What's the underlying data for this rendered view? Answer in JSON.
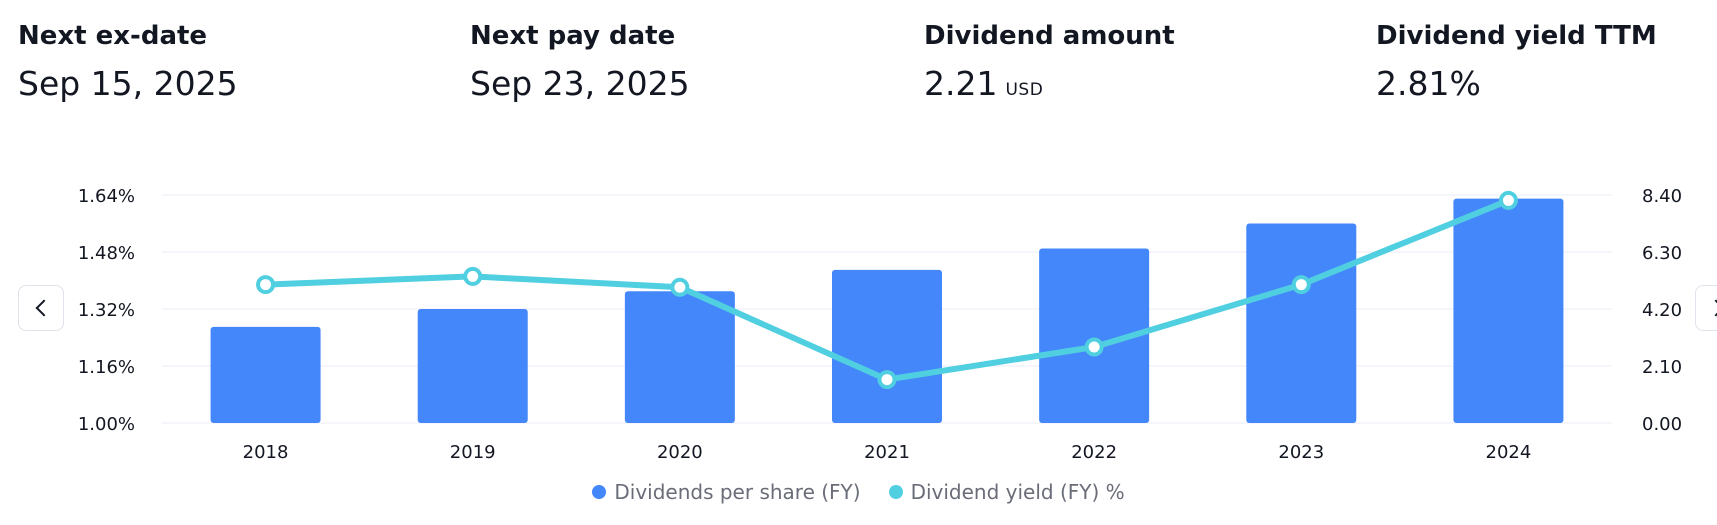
{
  "stats": [
    {
      "label": "Next ex-date",
      "value": "Sep 15, 2025",
      "unit": ""
    },
    {
      "label": "Next pay date",
      "value": "Sep 23, 2025",
      "unit": ""
    },
    {
      "label": "Dividend amount",
      "value": "2.21",
      "unit": "USD"
    },
    {
      "label": "Dividend yield TTM",
      "value": "2.81%",
      "unit": ""
    }
  ],
  "colors": {
    "bar": "#4387fb",
    "line": "#50cfe0",
    "grid": "#f0f3fa",
    "axis_text": "#131722"
  },
  "icons": {
    "prev": "chevron-left-icon",
    "next": "chevron-right-icon"
  },
  "chart_data": {
    "type": "bar",
    "categories": [
      "2018",
      "2019",
      "2020",
      "2021",
      "2022",
      "2023",
      "2024"
    ],
    "series": [
      {
        "name": "Dividends per share (FY)",
        "type": "bar",
        "axis": "left",
        "values": [
          1.27,
          1.32,
          1.37,
          1.43,
          1.49,
          1.56,
          1.63
        ]
      },
      {
        "name": "Dividend yield (FY) %",
        "type": "line",
        "axis": "right",
        "values": [
          5.1,
          5.4,
          5.0,
          1.6,
          2.8,
          5.1,
          8.2
        ]
      }
    ],
    "left_axis": {
      "ticks": [
        "1.00%",
        "1.16%",
        "1.32%",
        "1.48%",
        "1.64%"
      ],
      "min": 1.0,
      "max": 1.64
    },
    "right_axis": {
      "ticks": [
        "0.00",
        "2.10",
        "4.20",
        "6.30",
        "8.40"
      ],
      "min": 0,
      "max": 8.4
    },
    "grid": true,
    "legend_position": "bottom-center"
  }
}
